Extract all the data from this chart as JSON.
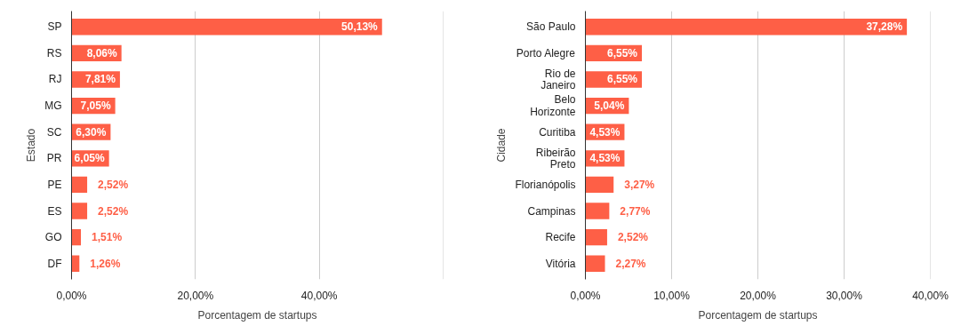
{
  "chart_data": [
    {
      "type": "bar",
      "orientation": "horizontal",
      "xlabel": "Porcentagem de startups",
      "ylabel": "Estado",
      "categories": [
        "SP",
        "RS",
        "RJ",
        "MG",
        "SC",
        "PR",
        "PE",
        "ES",
        "GO",
        "DF"
      ],
      "values": [
        50.13,
        8.06,
        7.81,
        7.05,
        6.3,
        6.05,
        2.52,
        2.52,
        1.51,
        1.26
      ],
      "value_labels": [
        "50,13%",
        "8,06%",
        "7,81%",
        "7,05%",
        "6,30%",
        "6,05%",
        "2,52%",
        "2,52%",
        "1,51%",
        "1,26%"
      ],
      "color": "#fe5f46",
      "xlim": [
        0,
        60
      ],
      "xticks": [
        {
          "value": 0,
          "label": "0,00%"
        },
        {
          "value": 20,
          "label": "20,00%"
        },
        {
          "value": 40,
          "label": "40,00%"
        },
        {
          "value": 60,
          "label": null
        }
      ],
      "grid": "x"
    },
    {
      "type": "bar",
      "orientation": "horizontal",
      "xlabel": "Porcentagem de startups",
      "ylabel": "Cidade",
      "categories": [
        "São Paulo",
        "Porto Alegre",
        "Rio de Janeiro",
        "Belo Horizonte",
        "Curitiba",
        "Ribeirão Preto",
        "Florianópolis",
        "Campinas",
        "Recife",
        "Vitória"
      ],
      "values": [
        37.28,
        6.55,
        6.55,
        5.04,
        4.53,
        4.53,
        3.27,
        2.77,
        2.52,
        2.27
      ],
      "value_labels": [
        "37,28%",
        "6,55%",
        "6,55%",
        "5,04%",
        "4,53%",
        "4,53%",
        "3,27%",
        "2,77%",
        "2,52%",
        "2,27%"
      ],
      "color": "#fe5f46",
      "xlim": [
        0,
        40
      ],
      "xticks": [
        {
          "value": 0,
          "label": "0,00%"
        },
        {
          "value": 10,
          "label": "10,00%"
        },
        {
          "value": 20,
          "label": "20,00%"
        },
        {
          "value": 30,
          "label": "30,00%"
        },
        {
          "value": 40,
          "label": "40,00%"
        }
      ],
      "grid": "x"
    }
  ]
}
